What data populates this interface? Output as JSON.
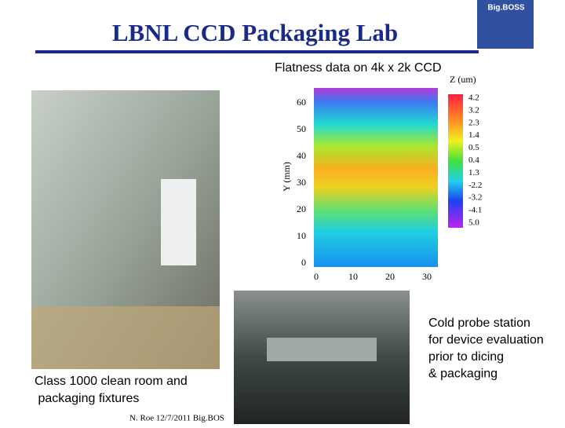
{
  "header": {
    "title": "LBNL CCD Packaging Lab",
    "logo": "Big.BOSS"
  },
  "flatness": {
    "title": "Flatness data on 4k x 2k CCD",
    "zlabel": "Z (um)",
    "ylabel": "Y (mm)",
    "yticks": [
      "0",
      "10",
      "20",
      "30",
      "40",
      "50",
      "60"
    ],
    "xticks": [
      "0",
      "10",
      "20",
      "30"
    ],
    "colorbar": [
      "4.2",
      "3.2",
      "2.3",
      "1.4",
      "0.5",
      "0.4",
      "1.3",
      "-2.2",
      "-3.2",
      "-4.1",
      "5.0"
    ]
  },
  "left_caption": [
    "Class 1000 clean room and",
    " packaging fixtures"
  ],
  "right_caption": [
    "Cold probe station",
    "for device evaluation",
    "prior to dicing",
    "& packaging"
  ],
  "footer": "N. Roe 12/7/2011 Big.BOS"
}
